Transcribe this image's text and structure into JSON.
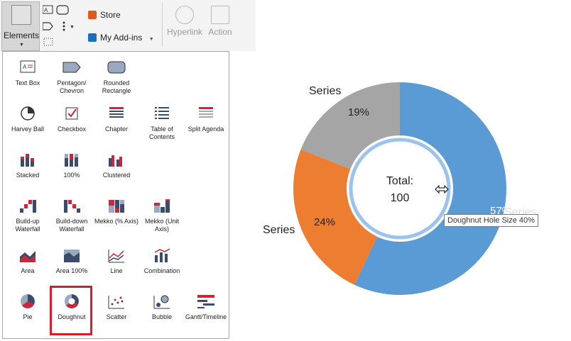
{
  "ribbon": {
    "elements_label": "Elements",
    "store_label": "Store",
    "addins_label": "My Add-ins",
    "hyperlink_label": "Hyperlink",
    "action_label": "Action"
  },
  "gallery": {
    "items": [
      {
        "label": "Text Box",
        "icon": "text-box-icon"
      },
      {
        "label": "Pentagon/\nChevron",
        "icon": "pentagon-chevron-icon"
      },
      {
        "label": "Rounded\nRectangle",
        "icon": "rounded-rectangle-icon"
      },
      {
        "label": "Harvey Ball",
        "icon": "harvey-ball-icon"
      },
      {
        "label": "Checkbox",
        "icon": "checkbox-icon"
      },
      {
        "label": "Chapter",
        "icon": "chapter-icon"
      },
      {
        "label": "Table of\nContents",
        "icon": "table-of-contents-icon"
      },
      {
        "label": "Split Agenda",
        "icon": "split-agenda-icon"
      },
      {
        "label": "Stacked",
        "icon": "stacked-chart-icon"
      },
      {
        "label": "100%",
        "icon": "percent-chart-icon"
      },
      {
        "label": "Clustered",
        "icon": "clustered-chart-icon"
      },
      {
        "label": "Build-up\nWaterfall",
        "icon": "buildup-waterfall-icon"
      },
      {
        "label": "Build-down\nWaterfall",
        "icon": "builddown-waterfall-icon"
      },
      {
        "label": "Mekko (% Axis)",
        "icon": "mekko-percent-icon"
      },
      {
        "label": "Mekko (Unit\nAxis)",
        "icon": "mekko-unit-icon"
      },
      {
        "label": "Area",
        "icon": "area-chart-icon"
      },
      {
        "label": "Area 100%",
        "icon": "area-100-icon"
      },
      {
        "label": "Line",
        "icon": "line-chart-icon"
      },
      {
        "label": "Combination",
        "icon": "combination-chart-icon"
      },
      {
        "label": "Pie",
        "icon": "pie-chart-icon"
      },
      {
        "label": "Doughnut",
        "icon": "doughnut-chart-icon"
      },
      {
        "label": "Scatter",
        "icon": "scatter-chart-icon"
      },
      {
        "label": "Bubble",
        "icon": "bubble-chart-icon"
      },
      {
        "label": "Gantt/Timeline",
        "icon": "gantt-timeline-icon"
      }
    ]
  },
  "chart_data": {
    "type": "pie",
    "donut": true,
    "categories": [
      "Series",
      "Series",
      "Series"
    ],
    "values": [
      57,
      24,
      19
    ],
    "labels": [
      "57%",
      "24%",
      "19%"
    ],
    "colors": [
      "#5b9bd5",
      "#ed7d31",
      "#a5a5a5"
    ],
    "center_label": "Total:",
    "center_value": "100"
  },
  "tooltip": {
    "text": "Doughnut Hole Size 40%"
  }
}
